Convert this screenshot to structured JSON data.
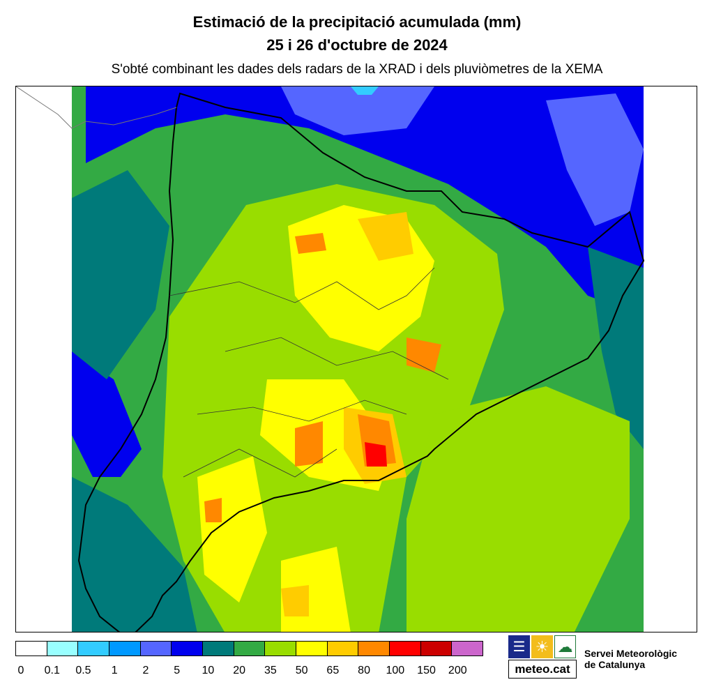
{
  "header": {
    "title_line1": "Estimació de la precipitació acumulada (mm)",
    "title_line2": "25 i 26 d'octubre de 2024",
    "subtitle": "S'obté combinant les dades dels radars de la XRAD i dels pluviòmetres de la XEMA"
  },
  "legend": {
    "colors": [
      "#ffffff",
      "#99ffff",
      "#33ccff",
      "#0099ff",
      "#5566ff",
      "#0000ee",
      "#007a7a",
      "#33aa44",
      "#99dd00",
      "#ffff00",
      "#ffcc00",
      "#ff8800",
      "#ff0000",
      "#cc0000",
      "#cc66cc"
    ],
    "ticks": [
      "0",
      "0.1",
      "0.5",
      "1",
      "2",
      "5",
      "10",
      "20",
      "35",
      "50",
      "65",
      "80",
      "100",
      "150",
      "200"
    ]
  },
  "logo": {
    "icons": [
      "weather-lines-icon",
      "sun-icon",
      "cloud-icon"
    ],
    "brand": "meteo.cat",
    "org_line1": "Servei Meteorològic",
    "org_line2": "de Catalunya"
  }
}
